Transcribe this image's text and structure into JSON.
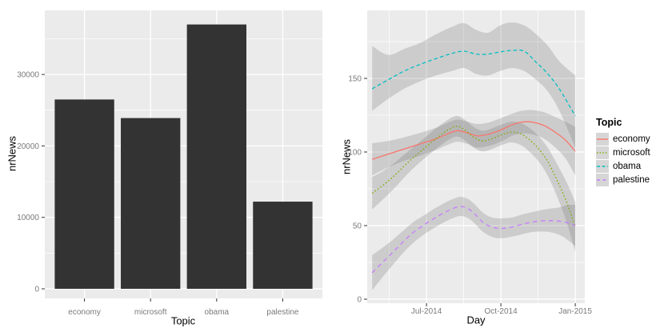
{
  "figure": {
    "background": "#FFFFFF",
    "panel_background": "#EBEBEB",
    "grid_color": "#FFFFFF",
    "tick_label_color": "#7A7A7A",
    "tick_mark_color": "#333333",
    "axis_title_color": "#000000",
    "bar_color": "#333333",
    "band_color": "rgba(110,110,110,0.25)",
    "legend_key_background": "#D6D6D6"
  },
  "chart_data": [
    {
      "type": "bar",
      "title": "",
      "xlabel": "Topic",
      "ylabel": "nrNews",
      "categories": [
        "economy",
        "microsoft",
        "obama",
        "palestine"
      ],
      "values": [
        26500,
        23900,
        37000,
        12200
      ],
      "yticks": [
        0,
        10000,
        20000,
        30000
      ],
      "ytick_labels": [
        "0",
        "10000",
        "20000",
        "30000"
      ],
      "yticks_minor": [
        5000,
        15000,
        25000,
        35000
      ],
      "ylim": [
        -1340,
        38970
      ],
      "grid": true,
      "legend_position": "none"
    },
    {
      "type": "line",
      "subtype": "loess_smooth_with_confidence_band",
      "title": "",
      "xlabel": "Day",
      "ylabel": "nrNews",
      "yticks": [
        0,
        50,
        100,
        150
      ],
      "ytick_labels": [
        "0",
        "50",
        "100",
        "150"
      ],
      "yticks_minor": [
        25,
        75,
        125,
        175
      ],
      "xtick_months": [
        6,
        9,
        12
      ],
      "xtick_labels": [
        "Jul-2014",
        "Oct-2014",
        "Jan-2015"
      ],
      "xticks_minor_months": [
        4.5,
        7.5,
        10.5
      ],
      "xlim_months": [
        3.61,
        12.39
      ],
      "ylim": [
        -2.7,
        196
      ],
      "grid": true,
      "legend_position": "right",
      "legend": {
        "title": "Topic"
      },
      "series": [
        {
          "name": "economy",
          "color": "#F8766D",
          "linetype": "solid",
          "points": [
            [
              3.81,
              95,
              84,
              106
            ],
            [
              4.45,
              98.5,
              89.5,
              107.5
            ],
            [
              5.1,
              102,
              94,
              110
            ],
            [
              5.74,
              105.5,
              97.5,
              113
            ],
            [
              6.39,
              109,
              101.5,
              116.5
            ],
            [
              6.87,
              112.5,
              105,
              120
            ],
            [
              7.26,
              114.5,
              107,
              122
            ],
            [
              7.65,
              113,
              105.5,
              120.5
            ],
            [
              8.03,
              111,
              103,
              119
            ],
            [
              8.48,
              112,
              104,
              120
            ],
            [
              9.0,
              115,
              107,
              123
            ],
            [
              9.45,
              118.5,
              111,
              126
            ],
            [
              9.84,
              120.3,
              112.5,
              128
            ],
            [
              10.26,
              120.3,
              112,
              128.5
            ],
            [
              10.74,
              118,
              109,
              127
            ],
            [
              11.23,
              113,
              102.5,
              123.5
            ],
            [
              11.61,
              108,
              95.5,
              120.5
            ],
            [
              12.0,
              100.5,
              84,
              117
            ]
          ]
        },
        {
          "name": "microsoft",
          "color": "#7CAE00",
          "linetype": "dotted",
          "points": [
            [
              3.81,
              72,
              61,
              83
            ],
            [
              4.29,
              78,
              68.5,
              87.5
            ],
            [
              4.77,
              85,
              76.5,
              93.5
            ],
            [
              5.26,
              93,
              85.5,
              100.5
            ],
            [
              5.74,
              100,
              93,
              107
            ],
            [
              6.23,
              107,
              100,
              114
            ],
            [
              6.61,
              112,
              105,
              119
            ],
            [
              6.97,
              116,
              109,
              123
            ],
            [
              7.26,
              117.5,
              110.5,
              124.5
            ],
            [
              7.58,
              114.5,
              107.5,
              121.5
            ],
            [
              7.9,
              110,
              103,
              117
            ],
            [
              8.23,
              107.5,
              100.5,
              114.5
            ],
            [
              8.55,
              108.5,
              101.5,
              115.5
            ],
            [
              9.0,
              111.5,
              104.5,
              118.5
            ],
            [
              9.39,
              113.5,
              106.5,
              120.5
            ],
            [
              9.77,
              112.5,
              105,
              120
            ],
            [
              10.1,
              109,
              101,
              117
            ],
            [
              10.48,
              103,
              94.5,
              111.5
            ],
            [
              10.87,
              94,
              84.5,
              103.5
            ],
            [
              11.26,
              81,
              70,
              92
            ],
            [
              11.65,
              66,
              52.5,
              79.5
            ],
            [
              12.0,
              49,
              32,
              66
            ]
          ]
        },
        {
          "name": "obama",
          "color": "#00BFC4",
          "linetype": "dashed",
          "points": [
            [
              3.81,
              143,
              128,
              172
            ],
            [
              4.45,
              149,
              136,
              166
            ],
            [
              5.1,
              155,
              143,
              170
            ],
            [
              5.74,
              159.5,
              148,
              174
            ],
            [
              6.39,
              163.5,
              152,
              180
            ],
            [
              7.03,
              167,
              155,
              185
            ],
            [
              7.52,
              168.5,
              157,
              187.5
            ],
            [
              8.0,
              166.5,
              153,
              183
            ],
            [
              8.48,
              166.5,
              152,
              181
            ],
            [
              8.97,
              168,
              155,
              186
            ],
            [
              9.45,
              169,
              157,
              188
            ],
            [
              9.94,
              168.5,
              155,
              186
            ],
            [
              10.42,
              161,
              149,
              180
            ],
            [
              10.9,
              153,
              141,
              172
            ],
            [
              11.39,
              142,
              127,
              161
            ],
            [
              12.0,
              124.5,
              103,
              152
            ]
          ]
        },
        {
          "name": "palestine",
          "color": "#C77CFF",
          "linetype": "longdash",
          "points": [
            [
              3.81,
              18,
              6,
              30
            ],
            [
              4.23,
              25,
              15,
              35
            ],
            [
              4.65,
              32,
              23.5,
              40.5
            ],
            [
              5.06,
              39,
              31.5,
              46.5
            ],
            [
              5.48,
              45.5,
              38.5,
              52.5
            ],
            [
              5.9,
              50.5,
              44,
              57
            ],
            [
              6.32,
              55,
              48.5,
              61.5
            ],
            [
              6.74,
              59,
              52.5,
              65.5
            ],
            [
              7.13,
              62,
              55.5,
              68.5
            ],
            [
              7.39,
              63,
              56.5,
              69.5
            ],
            [
              7.68,
              61.5,
              55,
              68
            ],
            [
              7.97,
              57.5,
              51,
              64
            ],
            [
              8.26,
              52.5,
              46,
              59
            ],
            [
              8.55,
              49.5,
              43,
              56
            ],
            [
              8.84,
              48.3,
              41.5,
              55
            ],
            [
              9.13,
              48.2,
              41.5,
              55
            ],
            [
              9.45,
              49,
              42.5,
              55.5
            ],
            [
              9.84,
              50.8,
              44,
              57.5
            ],
            [
              10.23,
              52.3,
              45.5,
              59
            ],
            [
              10.61,
              53.2,
              46,
              60.5
            ],
            [
              11.0,
              53.4,
              45.5,
              61.5
            ],
            [
              11.39,
              53,
              43.5,
              62.5
            ],
            [
              11.71,
              51.8,
              40,
              64
            ],
            [
              12.0,
              50,
              36,
              64
            ]
          ]
        }
      ]
    }
  ]
}
